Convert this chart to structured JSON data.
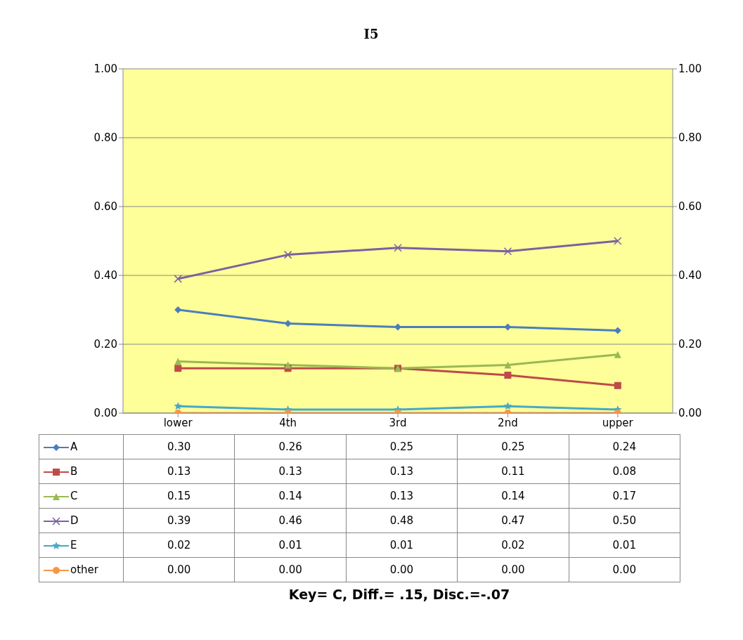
{
  "chart_data": {
    "type": "line",
    "title": "I5",
    "categories": [
      "lower",
      "4th",
      "3rd",
      "2nd",
      "upper"
    ],
    "series": [
      {
        "name": "A",
        "color": "#4a7ebb",
        "marker": "diamond",
        "values": [
          0.3,
          0.26,
          0.25,
          0.25,
          0.24
        ],
        "value_labels": [
          "0.30",
          "0.26",
          "0.25",
          "0.25",
          "0.24"
        ]
      },
      {
        "name": "B",
        "color": "#be4b48",
        "marker": "square",
        "values": [
          0.13,
          0.13,
          0.13,
          0.11,
          0.08
        ],
        "value_labels": [
          "0.13",
          "0.13",
          "0.13",
          "0.11",
          "0.08"
        ]
      },
      {
        "name": "C",
        "color": "#98b954",
        "marker": "triangle",
        "values": [
          0.15,
          0.14,
          0.13,
          0.14,
          0.17
        ],
        "value_labels": [
          "0.15",
          "0.14",
          "0.13",
          "0.14",
          "0.17"
        ]
      },
      {
        "name": "D",
        "color": "#7d60a0",
        "marker": "cross",
        "values": [
          0.39,
          0.46,
          0.48,
          0.47,
          0.5
        ],
        "value_labels": [
          "0.39",
          "0.46",
          "0.48",
          "0.47",
          "0.50"
        ]
      },
      {
        "name": "E",
        "color": "#46aac5",
        "marker": "star",
        "values": [
          0.02,
          0.01,
          0.01,
          0.02,
          0.01
        ],
        "value_labels": [
          "0.02",
          "0.01",
          "0.01",
          "0.02",
          "0.01"
        ]
      },
      {
        "name": "other",
        "color": "#f79646",
        "marker": "circle",
        "values": [
          0.0,
          0.0,
          0.0,
          0.0,
          0.0
        ],
        "value_labels": [
          "0.00",
          "0.00",
          "0.00",
          "0.00",
          "0.00"
        ]
      }
    ],
    "ylim": [
      0,
      1
    ],
    "yticks": [
      {
        "value": 0,
        "label": "0.00"
      },
      {
        "value": 0.2,
        "label": "0.20"
      },
      {
        "value": 0.4,
        "label": "0.40"
      },
      {
        "value": 0.6,
        "label": "0.60"
      },
      {
        "value": 0.8,
        "label": "0.80"
      },
      {
        "value": 1,
        "label": "1.00"
      }
    ],
    "y2lim": [
      0,
      1
    ],
    "y2ticks": [
      {
        "value": 0,
        "label": "0.00"
      },
      {
        "value": 0.2,
        "label": "0.20"
      },
      {
        "value": 0.4,
        "label": "0.40"
      },
      {
        "value": 0.6,
        "label": "0.60"
      },
      {
        "value": 0.8,
        "label": "0.80"
      },
      {
        "value": 1,
        "label": "1.00"
      }
    ],
    "grid": "y",
    "legend": "bottom",
    "line_style": "solid",
    "annotations": [
      "Key= C,  Diff.= .15,  Disc.=-.07"
    ]
  }
}
